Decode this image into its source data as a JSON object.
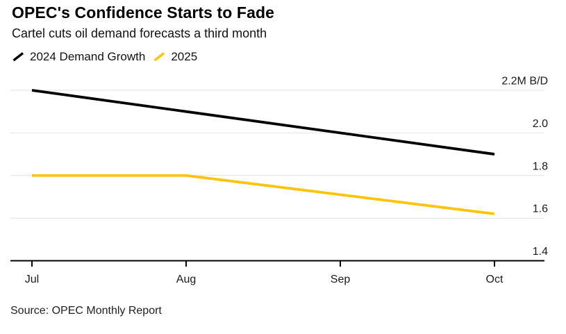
{
  "header": {
    "title": "OPEC's Confidence Starts to Fade",
    "subtitle": "Cartel cuts oil demand forecasts a third month"
  },
  "footer": {
    "source": "Source: OPEC Monthly Report"
  },
  "chart_data": {
    "type": "line",
    "title": "OPEC's Confidence Starts to Fade",
    "subtitle": "Cartel cuts oil demand forecasts a third month",
    "categories": [
      "Jul",
      "Aug",
      "Sep",
      "Oct"
    ],
    "series": [
      {
        "name": "2024 Demand Growth",
        "color": "#000000",
        "values": [
          2.2,
          2.1,
          2.0,
          1.9
        ]
      },
      {
        "name": "2025",
        "color": "#FDC40A",
        "values": [
          1.8,
          1.8,
          1.71,
          1.62
        ]
      }
    ],
    "unit": "M B/D",
    "ylim": [
      1.4,
      2.2
    ],
    "yticks": [
      1.4,
      1.6,
      1.8,
      2.0,
      2.2
    ],
    "ytick_labels": [
      "1.4",
      "1.6",
      "1.8",
      "2.0",
      "2.2M B/D"
    ],
    "grid": true,
    "legend_position": "top-left",
    "ytick_side": "right",
    "grid_color": "#e2e2e2",
    "axis_color": "#000000",
    "text_color": "#1a1a1a"
  }
}
